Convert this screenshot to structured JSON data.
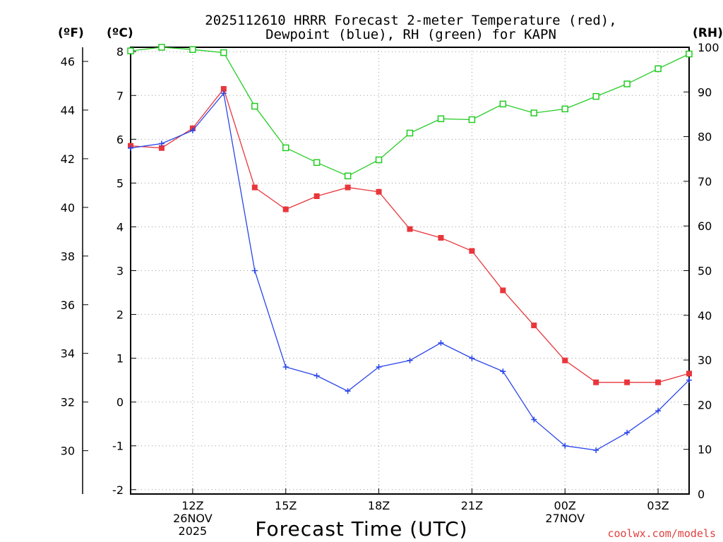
{
  "chart_data": {
    "type": "line",
    "title_lines": [
      "2025112610 HRRR Forecast 2-meter Temperature (red),",
      "Dewpoint (blue), RH (green) for KAPN"
    ],
    "unit_labels": {
      "fahrenheit": "(ºF)",
      "celsius": "(ºC)",
      "rh": "(RH)"
    },
    "xlabel": "Forecast Time (UTC)",
    "credit": "coolwx.com/models",
    "x_hours": [
      10,
      11,
      12,
      13,
      14,
      15,
      16,
      17,
      18,
      19,
      20,
      21,
      22,
      23,
      24,
      25,
      26,
      27,
      28
    ],
    "x_range": [
      10,
      28
    ],
    "x_ticks": [
      {
        "hour": 12,
        "lines": [
          "12Z",
          "26NOV",
          "2025"
        ]
      },
      {
        "hour": 15,
        "lines": [
          "15Z"
        ]
      },
      {
        "hour": 18,
        "lines": [
          "18Z"
        ]
      },
      {
        "hour": 21,
        "lines": [
          "21Z"
        ]
      },
      {
        "hour": 24,
        "lines": [
          "00Z",
          "27NOV"
        ]
      },
      {
        "hour": 27,
        "lines": [
          "03Z"
        ]
      }
    ],
    "celsius_range": [
      -2.1,
      8.1
    ],
    "celsius_ticks": [
      "-2",
      "-1",
      "0",
      "1",
      "2",
      "3",
      "4",
      "5",
      "6",
      "7",
      "8"
    ],
    "fahrenheit_ticks": [
      "30",
      "32",
      "34",
      "36",
      "38",
      "40",
      "42",
      "44",
      "46"
    ],
    "rh_range": [
      0,
      100
    ],
    "rh_ticks": [
      "0",
      "10",
      "20",
      "30",
      "40",
      "50",
      "60",
      "70",
      "80",
      "90",
      "100"
    ],
    "series": [
      {
        "name": "2-meter Temperature",
        "unit": "C",
        "color": "#e8363b",
        "marker": "filled-square",
        "values": [
          5.85,
          5.8,
          6.25,
          7.15,
          4.9,
          4.4,
          4.7,
          4.9,
          4.8,
          3.95,
          3.75,
          3.45,
          2.55,
          1.75,
          0.95,
          0.45,
          0.45,
          0.45,
          0.65
        ]
      },
      {
        "name": "Dewpoint",
        "unit": "C",
        "color": "#2a45e8",
        "marker": "plus",
        "values": [
          5.8,
          5.9,
          6.2,
          7.05,
          3.0,
          0.8,
          0.6,
          0.25,
          0.8,
          0.95,
          1.35,
          1.0,
          0.7,
          -0.4,
          -1.0,
          -1.1,
          -0.7,
          -0.2,
          0.5
        ]
      },
      {
        "name": "RH",
        "unit": "%",
        "color": "#22cc22",
        "marker": "open-square",
        "values": [
          99.2,
          100,
          99.5,
          98.8,
          86.8,
          77.5,
          74.2,
          71.2,
          74.8,
          80.8,
          84.0,
          83.8,
          87.3,
          85.3,
          86.2,
          89.0,
          91.8,
          95.2,
          98.5
        ]
      }
    ]
  }
}
